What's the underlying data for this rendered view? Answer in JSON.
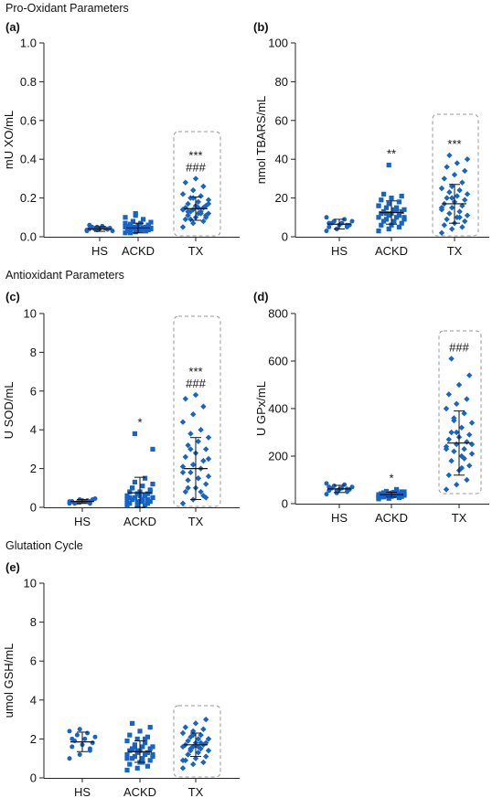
{
  "sections": {
    "pro": "Pro-Oxidant Parameters",
    "anti": "Antioxidant Parameters",
    "glut": "Glutation Cycle"
  },
  "colors": {
    "marker": "#1764C9",
    "axis": "#222222",
    "box": "#9a9a9a",
    "errorbar": "#111111"
  },
  "chart_data": [
    {
      "panel": "(a)",
      "type": "scatter",
      "ylabel": "mU XO/mL",
      "ylim": [
        0,
        1.0
      ],
      "yticks": [
        0.0,
        0.2,
        0.4,
        0.6,
        0.8,
        1.0
      ],
      "yfmt": 1,
      "categories": [
        "HS",
        "ACKD",
        "TX"
      ],
      "markers": [
        "circle",
        "square",
        "diamond"
      ],
      "box": 2,
      "groups": [
        {
          "mean": 0.04,
          "sd": 0.012,
          "annot": [],
          "values": [
            0.03,
            0.035,
            0.038,
            0.04,
            0.042,
            0.045,
            0.05,
            0.055,
            0.03,
            0.04,
            0.045,
            0.035,
            0.05,
            0.04,
            0.06
          ]
        },
        {
          "mean": 0.045,
          "sd": 0.025,
          "annot": [],
          "values": [
            0.02,
            0.025,
            0.03,
            0.03,
            0.035,
            0.035,
            0.04,
            0.04,
            0.04,
            0.045,
            0.045,
            0.05,
            0.05,
            0.05,
            0.055,
            0.06,
            0.06,
            0.065,
            0.07,
            0.075,
            0.08,
            0.09,
            0.1,
            0.12,
            0.03,
            0.04,
            0.05,
            0.06,
            0.02,
            0.035,
            0.045,
            0.05,
            0.04,
            0.07,
            0.11
          ]
        },
        {
          "mean": 0.145,
          "sd": 0.06,
          "annot": [
            "***",
            "###"
          ],
          "values": [
            0.05,
            0.07,
            0.08,
            0.09,
            0.1,
            0.1,
            0.11,
            0.12,
            0.12,
            0.13,
            0.13,
            0.14,
            0.14,
            0.15,
            0.15,
            0.16,
            0.16,
            0.17,
            0.18,
            0.19,
            0.2,
            0.21,
            0.22,
            0.24,
            0.26,
            0.28,
            0.3,
            0.11,
            0.13,
            0.15,
            0.17,
            0.09,
            0.12,
            0.14,
            0.2
          ]
        }
      ]
    },
    {
      "panel": "(b)",
      "type": "scatter",
      "ylabel": "nmol TBARS/mL",
      "ylim": [
        0,
        100
      ],
      "yticks": [
        0,
        20,
        40,
        60,
        80,
        100
      ],
      "yfmt": 0,
      "categories": [
        "HS",
        "ACKD",
        "TX"
      ],
      "markers": [
        "circle",
        "square",
        "diamond"
      ],
      "box": 2,
      "groups": [
        {
          "mean": 6.5,
          "sd": 2.5,
          "annot": [],
          "values": [
            3,
            4,
            5,
            5,
            6,
            6,
            7,
            7,
            8,
            8,
            9,
            10,
            4,
            6,
            7
          ]
        },
        {
          "mean": 12.5,
          "sd": 6,
          "annot": [
            "**"
          ],
          "values": [
            3,
            4,
            5,
            6,
            6,
            7,
            8,
            8,
            9,
            9,
            10,
            10,
            11,
            11,
            12,
            12,
            13,
            13,
            14,
            14,
            15,
            15,
            16,
            17,
            18,
            19,
            20,
            21,
            22,
            8,
            10,
            12,
            14,
            16,
            37
          ]
        },
        {
          "mean": 17,
          "sd": 10,
          "annot": [
            "***"
          ],
          "values": [
            2,
            4,
            5,
            6,
            7,
            8,
            9,
            10,
            11,
            12,
            13,
            14,
            15,
            16,
            17,
            18,
            19,
            20,
            21,
            22,
            23,
            24,
            25,
            26,
            28,
            30,
            32,
            34,
            36,
            38,
            40,
            42,
            10,
            15,
            20
          ]
        }
      ]
    },
    {
      "panel": "(c)",
      "type": "scatter",
      "ylabel": "U SOD/mL",
      "ylim": [
        0,
        10
      ],
      "yticks": [
        0,
        2,
        4,
        6,
        8,
        10
      ],
      "yfmt": 0,
      "categories": [
        "HS",
        "ACKD",
        "TX"
      ],
      "markers": [
        "circle",
        "square",
        "diamond"
      ],
      "box": 2,
      "groups": [
        {
          "mean": 0.3,
          "sd": 0.1,
          "annot": [],
          "values": [
            0.2,
            0.25,
            0.3,
            0.3,
            0.35,
            0.4,
            0.2,
            0.3,
            0.45,
            0.25,
            0.35,
            0.3,
            0.4,
            0.2,
            0.3
          ]
        },
        {
          "mean": 0.75,
          "sd": 0.8,
          "annot": [
            "*"
          ],
          "values": [
            0.1,
            0.1,
            0.2,
            0.2,
            0.3,
            0.3,
            0.4,
            0.4,
            0.5,
            0.5,
            0.6,
            0.6,
            0.7,
            0.7,
            0.8,
            0.8,
            0.9,
            1.0,
            1.1,
            1.2,
            1.3,
            1.5,
            0.2,
            0.3,
            0.4,
            0.5,
            0.6,
            0.8,
            1.0,
            0.3,
            3.0,
            3.8,
            0.1,
            0.4,
            0.7
          ]
        },
        {
          "mean": 2.0,
          "sd": 1.6,
          "annot": [
            "***",
            "###"
          ],
          "values": [
            0.2,
            0.4,
            0.6,
            0.8,
            1.0,
            1.2,
            1.4,
            1.5,
            1.6,
            1.8,
            2.0,
            2.1,
            2.2,
            2.4,
            2.6,
            2.8,
            3.0,
            3.2,
            3.4,
            3.6,
            3.8,
            4.0,
            4.4,
            4.8,
            5.2,
            5.6,
            5.8,
            0.5,
            1.0,
            1.5,
            2.5,
            3.0,
            0.8,
            1.8,
            2.2
          ]
        }
      ]
    },
    {
      "panel": "(d)",
      "type": "scatter",
      "ylabel": "U GPx/mL",
      "ylim": [
        0,
        800
      ],
      "yticks": [
        0,
        200,
        400,
        600,
        800
      ],
      "yfmt": 0,
      "categories": [
        "HS",
        "ACKD",
        "TX"
      ],
      "markers": [
        "circle",
        "square",
        "diamond"
      ],
      "box": 2,
      "groups": [
        {
          "mean": 62,
          "sd": 15,
          "annot": [],
          "values": [
            40,
            45,
            50,
            55,
            60,
            60,
            65,
            65,
            70,
            75,
            80,
            85,
            55,
            62,
            70
          ]
        },
        {
          "mean": 38,
          "sd": 10,
          "annot": [
            "*"
          ],
          "values": [
            20,
            22,
            25,
            28,
            30,
            30,
            32,
            34,
            35,
            36,
            38,
            38,
            40,
            40,
            42,
            44,
            45,
            46,
            48,
            50,
            52,
            55,
            25,
            30,
            35,
            40,
            45,
            50,
            28,
            33,
            38,
            43,
            60,
            32,
            42
          ]
        },
        {
          "mean": 255,
          "sd": 135,
          "annot": [
            "###"
          ],
          "values": [
            60,
            80,
            100,
            120,
            140,
            160,
            180,
            200,
            210,
            220,
            230,
            240,
            250,
            260,
            270,
            280,
            290,
            300,
            320,
            340,
            360,
            380,
            400,
            420,
            440,
            460,
            500,
            540,
            610,
            150,
            250,
            350,
            190,
            230,
            300
          ]
        }
      ]
    },
    {
      "panel": "(e)",
      "type": "scatter",
      "ylabel": "umol GSH/mL",
      "ylim": [
        0,
        10
      ],
      "yticks": [
        0,
        2,
        4,
        6,
        8,
        10
      ],
      "yfmt": 0,
      "categories": [
        "HS",
        "ACKD",
        "TX"
      ],
      "markers": [
        "circle",
        "square",
        "diamond"
      ],
      "box": 2,
      "groups": [
        {
          "mean": 1.85,
          "sd": 0.5,
          "annot": [],
          "values": [
            1.0,
            1.2,
            1.4,
            1.6,
            1.7,
            1.8,
            1.9,
            2.0,
            2.1,
            2.2,
            2.3,
            2.4,
            2.5,
            1.5,
            2.0
          ]
        },
        {
          "mean": 1.35,
          "sd": 0.55,
          "annot": [],
          "values": [
            0.4,
            0.5,
            0.6,
            0.7,
            0.8,
            0.9,
            1.0,
            1.0,
            1.1,
            1.1,
            1.2,
            1.2,
            1.3,
            1.3,
            1.4,
            1.4,
            1.5,
            1.5,
            1.6,
            1.6,
            1.7,
            1.8,
            1.9,
            2.0,
            2.1,
            2.2,
            2.4,
            2.6,
            2.8,
            0.8,
            1.2,
            1.6,
            2.0,
            1.0,
            1.4
          ]
        },
        {
          "mean": 1.7,
          "sd": 0.6,
          "annot": [],
          "values": [
            0.5,
            0.7,
            0.8,
            0.9,
            1.0,
            1.1,
            1.2,
            1.3,
            1.4,
            1.5,
            1.5,
            1.6,
            1.6,
            1.7,
            1.7,
            1.8,
            1.8,
            1.9,
            2.0,
            2.0,
            2.1,
            2.2,
            2.3,
            2.4,
            2.5,
            2.6,
            2.8,
            3.0,
            1.2,
            1.6,
            2.0,
            1.4,
            1.8,
            0.9,
            2.2
          ]
        }
      ]
    }
  ]
}
